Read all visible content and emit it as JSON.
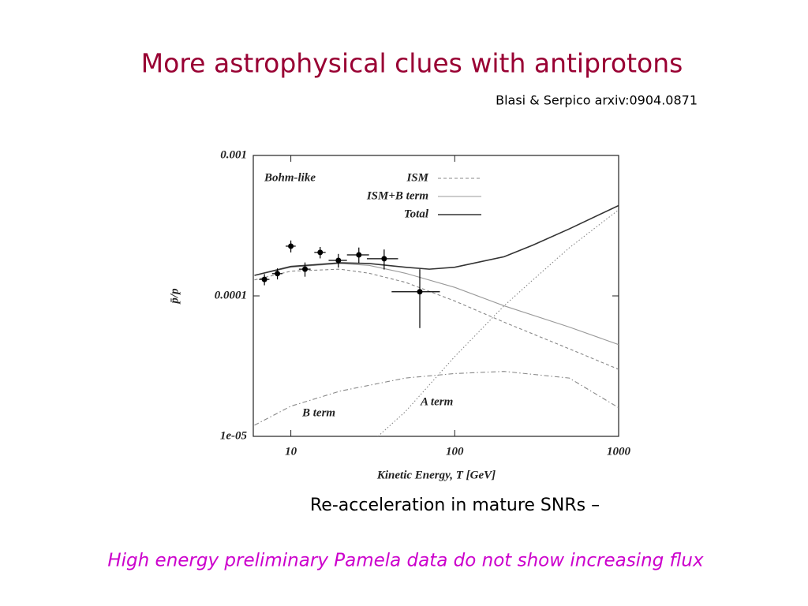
{
  "title": "More astrophysical clues with antiprotons",
  "citation": "Blasi & Serpico arxiv:0904.0871",
  "caption": "Re-acceleration in mature SNRs –",
  "footer": "High energy preliminary Pamela data do not show increasing flux",
  "chart_data": {
    "type": "line",
    "xlabel": "Kinetic Energy, T [GeV]",
    "ylabel": "p̄/p",
    "annotation": "Bohm-like",
    "xscale": "log",
    "yscale": "log",
    "xlim": [
      5.9,
      1000
    ],
    "ylim": [
      1e-05,
      0.001
    ],
    "xticks": [
      10,
      100,
      1000
    ],
    "yticks": [
      {
        "value": 1e-05,
        "label": "1e-05"
      },
      0.0001,
      0.001
    ],
    "series": [
      {
        "name": "ISM",
        "color": "#888888",
        "dash": "dashed",
        "legend": true,
        "x": [
          6,
          10,
          20,
          30,
          50,
          100,
          200,
          500,
          1000
        ],
        "values": [
          0.00013,
          0.00015,
          0.000155,
          0.000145,
          0.000125,
          9.2e-05,
          6.5e-05,
          4.2e-05,
          3e-05
        ]
      },
      {
        "name": "ISM+B term",
        "color": "#999999",
        "dash": "solid",
        "legend": true,
        "x": [
          6,
          10,
          20,
          30,
          50,
          100,
          200,
          500,
          1000
        ],
        "values": [
          0.00014,
          0.00016,
          0.00017,
          0.000165,
          0.000145,
          0.000115,
          8.5e-05,
          6e-05,
          4.5e-05
        ]
      },
      {
        "name": "Total",
        "color": "#333333",
        "dash": "solid",
        "legend": true,
        "x": [
          6,
          10,
          20,
          30,
          50,
          70,
          100,
          200,
          300,
          500,
          1000
        ],
        "values": [
          0.00014,
          0.000162,
          0.000172,
          0.00017,
          0.00016,
          0.000155,
          0.00016,
          0.00019,
          0.00023,
          0.0003,
          0.00044
        ]
      },
      {
        "name": "B term",
        "color": "#888888",
        "dash": "dashdot",
        "legend": false,
        "x": [
          6,
          10,
          20,
          50,
          100,
          200,
          500,
          1000
        ],
        "values": [
          1.2e-05,
          1.64e-05,
          2.1e-05,
          2.6e-05,
          2.8e-05,
          2.9e-05,
          2.6e-05,
          1.6e-05
        ]
      },
      {
        "name": "A term",
        "color": "#888888",
        "dash": "dotted",
        "legend": false,
        "x": [
          34,
          50,
          100,
          200,
          300,
          500,
          1000
        ],
        "values": [
          1e-05,
          1.5e-05,
          3.7e-05,
          8.5e-05,
          0.00013,
          0.00022,
          0.00041
        ]
      }
    ],
    "points": {
      "color": "#000000",
      "x": [
        6.9,
        8.28,
        10,
        12.2,
        15.1,
        19.5,
        26,
        37.1,
        61.2
      ],
      "y": [
        0.000131,
        0.000144,
        0.000226,
        0.000155,
        0.000204,
        0.000179,
        0.000196,
        0.000184,
        0.000107
      ],
      "xerr": [
        0.5,
        0.6,
        0.7,
        1,
        1.2,
        2.5,
        4,
        8,
        20
      ],
      "yerr": [
        1.2e-05,
        1.3e-05,
        2.2e-05,
        1.8e-05,
        1.9e-05,
        2e-05,
        2.5e-05,
        3e-05,
        4.8e-05
      ]
    }
  }
}
